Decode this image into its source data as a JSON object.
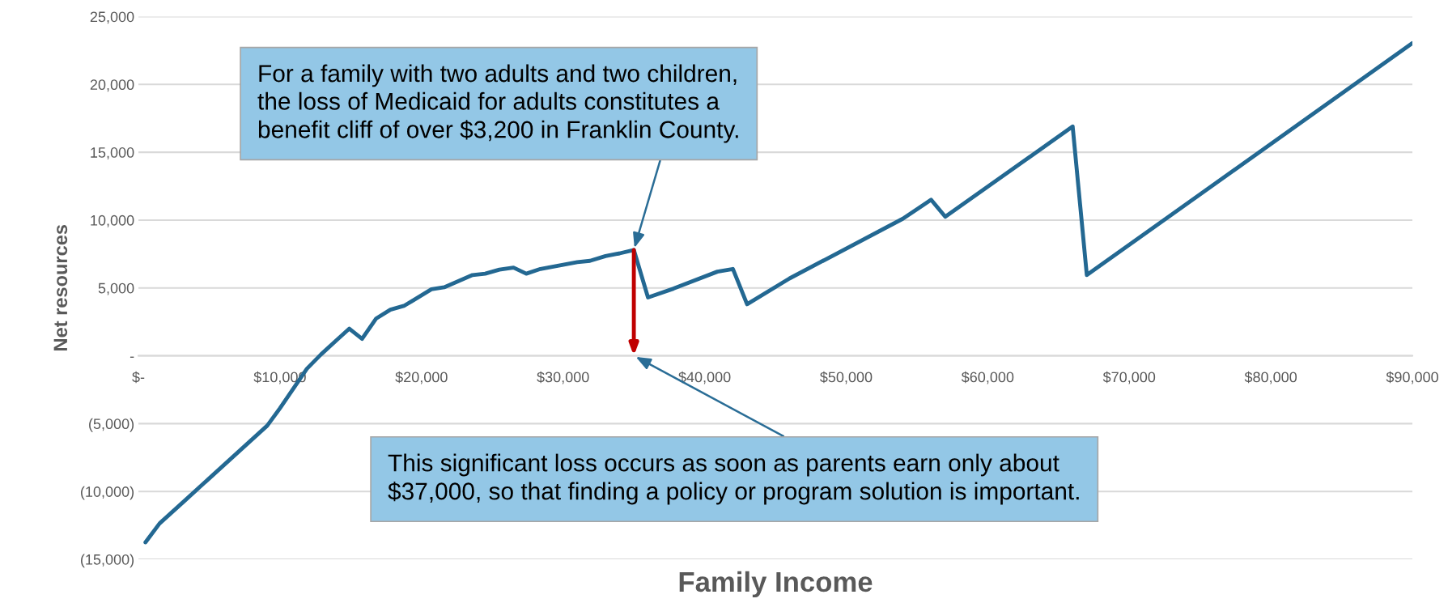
{
  "chart_data": {
    "type": "line",
    "xlabel": "Family Income",
    "ylabel": "Net resources",
    "series": [
      {
        "color": "#236892",
        "x": [
          500,
          1500,
          3300,
          9100,
          10000,
          11900,
          12900,
          14000,
          14900,
          15800,
          16800,
          17800,
          18800,
          20700,
          21600,
          23600,
          24500,
          25500,
          26500,
          27400,
          28400,
          31000,
          31900,
          33000,
          34000,
          35000,
          36000,
          37800,
          40900,
          42000,
          43000,
          46000,
          54000,
          56000,
          57000,
          66000,
          67000,
          90000
        ],
        "values": [
          -13750,
          -12350,
          -10650,
          -5150,
          -3870,
          -960,
          100,
          1150,
          2000,
          1250,
          2750,
          3400,
          3700,
          4900,
          5050,
          5950,
          6050,
          6350,
          6500,
          6050,
          6400,
          6900,
          7000,
          7350,
          7550,
          7800,
          4300,
          4950,
          6200,
          6400,
          3800,
          5700,
          10100,
          11500,
          10250,
          16900,
          5950,
          23050
        ]
      }
    ],
    "xlim": [
      0,
      90000
    ],
    "xticks": [
      {
        "value": 0,
        "label": "$-"
      },
      {
        "value": 10000,
        "label": "$10,000"
      },
      {
        "value": 20000,
        "label": "$20,000"
      },
      {
        "value": 30000,
        "label": "$30,000"
      },
      {
        "value": 40000,
        "label": "$40,000"
      },
      {
        "value": 50000,
        "label": "$50,000"
      },
      {
        "value": 60000,
        "label": "$60,000"
      },
      {
        "value": 70000,
        "label": "$70,000"
      },
      {
        "value": 80000,
        "label": "$80,000"
      },
      {
        "value": 90000,
        "label": "$90,000"
      }
    ],
    "ylim": [
      -15000,
      25000
    ],
    "yticks": [
      {
        "value": -15000,
        "label": "(15,000)"
      },
      {
        "value": -10000,
        "label": "(10,000)"
      },
      {
        "value": -5000,
        "label": "(5,000)"
      },
      {
        "value": 0,
        "label": "-"
      },
      {
        "value": 5000,
        "label": "5,000"
      },
      {
        "value": 10000,
        "label": "10,000"
      },
      {
        "value": 15000,
        "label": "15,000"
      },
      {
        "value": 20000,
        "label": "20,000"
      },
      {
        "value": 25000,
        "label": "25,000"
      }
    ],
    "grid": "y",
    "marker": "none",
    "line_style": "solid",
    "annotations": [
      {
        "text": "For a family with two adults and two children,\nthe loss of Medicaid for adults constitutes a\nbenefit cliff of over $3,200 in Franklin County.",
        "x": 35000,
        "y": 7800
      },
      "This significant loss occurs as soon as parents earn only about\n$37,000, so that finding a policy or program solution is important."
    ]
  }
}
